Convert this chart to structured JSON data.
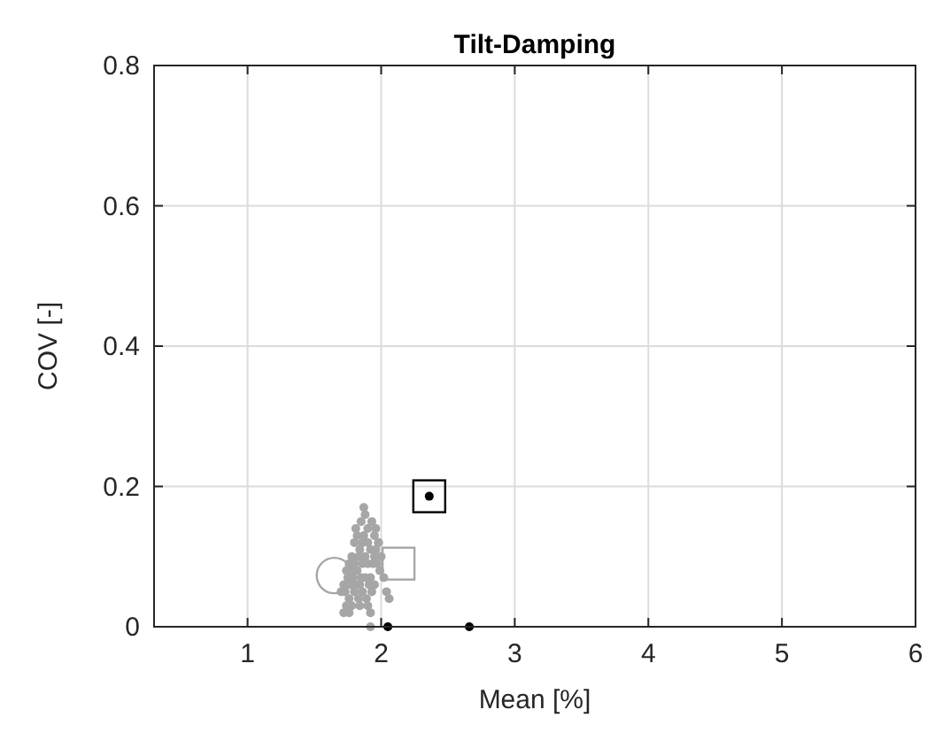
{
  "chart_data": {
    "type": "scatter",
    "title": "Tilt-Damping",
    "xlabel": "Mean [%]",
    "ylabel": "COV [-]",
    "xlim": [
      0.3,
      6
    ],
    "ylim": [
      0,
      0.8
    ],
    "xticks": [
      1,
      2,
      3,
      4,
      5,
      6
    ],
    "yticks": [
      0,
      0.2,
      0.4,
      0.6,
      0.8
    ],
    "grid": true,
    "series": [
      {
        "color": "#a6a6a6",
        "marker": "circle",
        "x": [
          1.88,
          1.85,
          1.9,
          1.93,
          1.87,
          1.82,
          1.95,
          1.98,
          1.9,
          1.86,
          1.8,
          1.84,
          1.92,
          1.96,
          2.0,
          1.88,
          1.83,
          1.78,
          1.76,
          1.8,
          1.74,
          1.78,
          1.82,
          1.86,
          1.9,
          1.94,
          1.97,
          1.99,
          1.85,
          1.79,
          1.75,
          1.72,
          1.77,
          1.81,
          1.84,
          1.88,
          1.92,
          1.7,
          1.73,
          1.8,
          1.86,
          1.91,
          1.95,
          2.02,
          2.04,
          2.06,
          1.76,
          1.83,
          1.89,
          1.93,
          1.96,
          1.87,
          1.81,
          1.78,
          1.74,
          1.72,
          1.76,
          1.84,
          1.9,
          1.92,
          1.98,
          1.95,
          1.92
        ],
        "values": [
          0.16,
          0.15,
          0.14,
          0.15,
          0.13,
          0.13,
          0.13,
          0.12,
          0.12,
          0.12,
          0.12,
          0.11,
          0.11,
          0.11,
          0.1,
          0.1,
          0.1,
          0.1,
          0.09,
          0.09,
          0.08,
          0.08,
          0.08,
          0.09,
          0.09,
          0.09,
          0.09,
          0.08,
          0.07,
          0.07,
          0.07,
          0.06,
          0.06,
          0.06,
          0.06,
          0.07,
          0.07,
          0.05,
          0.05,
          0.05,
          0.05,
          0.06,
          0.06,
          0.07,
          0.05,
          0.04,
          0.04,
          0.04,
          0.04,
          0.05,
          0.14,
          0.17,
          0.14,
          0.03,
          0.03,
          0.02,
          0.02,
          0.03,
          0.03,
          0.02,
          0.12,
          0.1,
          0.0
        ]
      },
      {
        "color": "#000000",
        "marker": "circle",
        "x": [
          2.36,
          2.05,
          2.66
        ],
        "values": [
          0.186,
          0,
          0
        ]
      },
      {
        "color": "#000000",
        "marker": "square",
        "x": [
          2.36
        ],
        "values": [
          0.186
        ]
      },
      {
        "color": "#a6a6a6",
        "marker": "square",
        "x": [
          2.13
        ],
        "values": [
          0.09
        ]
      },
      {
        "color": "#a6a6a6",
        "marker": "circle_large",
        "x": [
          1.65
        ],
        "values": [
          0.073
        ]
      }
    ]
  }
}
